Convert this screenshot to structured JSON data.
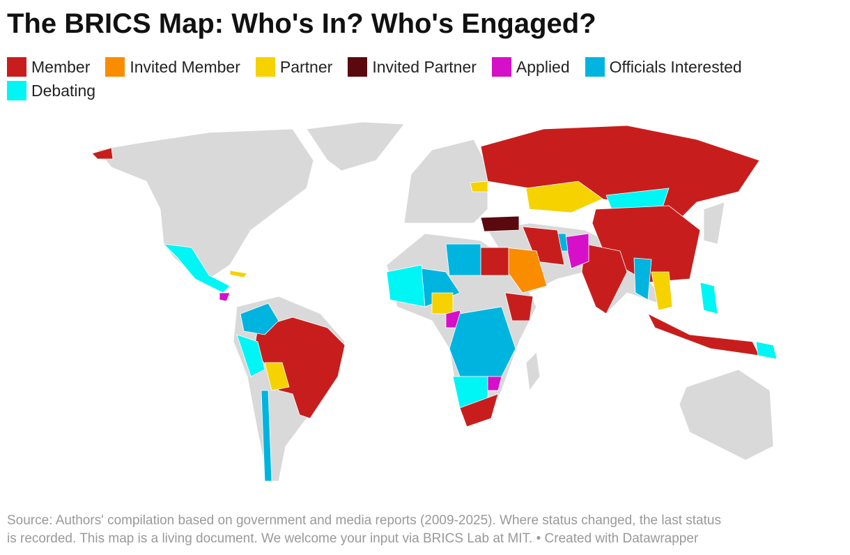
{
  "title": "The BRICS Map: Who's In? Who's Engaged?",
  "legend": [
    {
      "label": "Member",
      "color": "#c71e1d"
    },
    {
      "label": "Invited Member",
      "color": "#fa8c00"
    },
    {
      "label": "Partner",
      "color": "#f5d200"
    },
    {
      "label": "Invited Partner",
      "color": "#5a0a0f"
    },
    {
      "label": "Applied",
      "color": "#d60fc8"
    },
    {
      "label": "Officials Interested",
      "color": "#00b4e0"
    },
    {
      "label": "Debating",
      "color": "#00f5f5"
    }
  ],
  "footer": {
    "line1": "Source: Authors' compilation based on government and media reports (2009-2025). Where status changed, the last status",
    "line2": "is recorded. This map is a living document. We welcome your input via BRICS Lab at MIT.",
    "credit": "• Created with Datawrapper"
  }
}
